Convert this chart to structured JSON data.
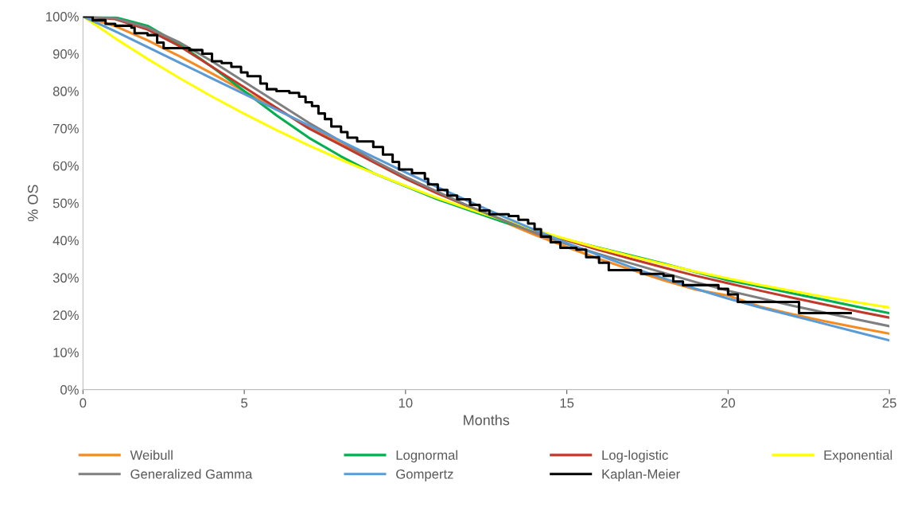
{
  "chart_data": {
    "type": "line",
    "xlabel": "Months",
    "ylabel": "% OS",
    "xlim": [
      0,
      25
    ],
    "xticks": [
      0,
      5,
      10,
      15,
      20,
      25
    ],
    "ylim": [
      0,
      100
    ],
    "yticks": [
      {
        "value": 0,
        "label": "0%"
      },
      {
        "value": 10,
        "label": "10%"
      },
      {
        "value": 20,
        "label": "20%"
      },
      {
        "value": 30,
        "label": "30%"
      },
      {
        "value": 40,
        "label": "40%"
      },
      {
        "value": 50,
        "label": "50%"
      },
      {
        "value": 60,
        "label": "60%"
      },
      {
        "value": 70,
        "label": "70%"
      },
      {
        "value": 80,
        "label": "80%"
      },
      {
        "value": 90,
        "label": "90%"
      },
      {
        "value": 100,
        "label": "100%"
      }
    ],
    "grid": false,
    "legend": "bottom",
    "marker": "none",
    "line_style": "solid",
    "x": [
      0,
      1,
      2,
      3,
      4,
      5,
      6,
      7,
      8,
      9,
      10,
      11,
      12,
      13,
      14,
      15,
      16,
      17,
      18,
      19,
      20,
      21,
      22,
      23,
      24,
      25
    ],
    "series": [
      {
        "name": "Weibull",
        "color": "#f58c23",
        "values": [
          100,
          97.4,
          93.6,
          89.3,
          84.7,
          79.9,
          75.2,
          70.5,
          65.8,
          61.3,
          57.0,
          52.8,
          48.8,
          45.1,
          41.5,
          38.2,
          35.0,
          32.1,
          29.3,
          26.8,
          25.2,
          22.2,
          20.2,
          18.3,
          16.6,
          15.0
        ]
      },
      {
        "name": "Lognormal",
        "color": "#00b050",
        "values": [
          100,
          99.8,
          97.5,
          92.5,
          86.5,
          80,
          73.5,
          67.5,
          62.5,
          58,
          54.5,
          51,
          48,
          45,
          42.5,
          40.2,
          38,
          35.9,
          33.8,
          31.5,
          29.3,
          27.6,
          25.8,
          24,
          22.2,
          20.5
        ]
      },
      {
        "name": "Log-logistic",
        "color": "#c0392b",
        "values": [
          100,
          99.3,
          96.5,
          92,
          86.5,
          81,
          75.5,
          70,
          65.5,
          61,
          56.5,
          52.5,
          49,
          45.5,
          42.5,
          40,
          37.4,
          35,
          32.7,
          30.5,
          28.5,
          26.5,
          24.6,
          22.8,
          21,
          19.3
        ]
      },
      {
        "name": "Exponential",
        "color": "#ffff00",
        "values": [
          100,
          94.1,
          88.6,
          83.4,
          78.5,
          73.9,
          69.5,
          65.4,
          61.6,
          58.0,
          54.6,
          51.3,
          48.3,
          45.5,
          42.8,
          40.3,
          37.9,
          35.7,
          33.6,
          31.6,
          29.8,
          28.0,
          26.4,
          24.8,
          23.4,
          22.0
        ]
      },
      {
        "name": "Generalized Gamma",
        "color": "#7f7f7f",
        "values": [
          100,
          99.5,
          97,
          93,
          88,
          82.5,
          77,
          71.5,
          66.5,
          61.5,
          57,
          53,
          49,
          45.5,
          42,
          39,
          36.3,
          33.8,
          31.3,
          28.8,
          26.5,
          24.5,
          22.5,
          20.6,
          18.8,
          17
        ]
      },
      {
        "name": "Gompertz",
        "color": "#5b9bd5",
        "values": [
          100,
          96,
          91.8,
          87.6,
          83.4,
          79.2,
          75,
          70.8,
          66.6,
          62.4,
          58.2,
          54.2,
          50.3,
          46.5,
          42.8,
          39.3,
          36,
          32.8,
          29.8,
          27,
          24.4,
          22,
          19.8,
          17.6,
          15.4,
          13.2
        ]
      },
      {
        "name": "Kaplan-Meier",
        "color": "#000000",
        "type": "step",
        "x": [
          0,
          0.3,
          0.7,
          1.0,
          1.5,
          1.6,
          2.0,
          2.3,
          2.5,
          3.0,
          3.3,
          3.7,
          4.0,
          4.3,
          4.6,
          4.9,
          5.1,
          5.5,
          5.7,
          6.0,
          6.4,
          6.7,
          6.9,
          7.1,
          7.3,
          7.5,
          7.7,
          8.0,
          8.2,
          8.5,
          9.0,
          9.3,
          9.6,
          9.8,
          10.2,
          10.6,
          10.7,
          11.0,
          11.3,
          11.6,
          12.0,
          12.3,
          12.6,
          13.2,
          13.5,
          13.8,
          14.0,
          14.2,
          14.5,
          14.8,
          15.3,
          15.6,
          16.0,
          16.3,
          17.0,
          17.3,
          18.0,
          18.3,
          18.6,
          19.7,
          20.0,
          20.3,
          22.2,
          23.8
        ],
        "values": [
          100,
          99,
          98,
          97.5,
          97,
          95.5,
          95,
          93,
          91.5,
          91.5,
          91,
          90,
          88,
          87.5,
          86.5,
          85,
          84,
          82,
          80.5,
          80,
          79.5,
          78.5,
          77,
          76,
          74,
          72.5,
          70.5,
          69,
          67.5,
          66.5,
          65,
          63,
          61,
          59,
          58,
          56.5,
          55,
          53.5,
          52,
          51,
          49.5,
          48,
          47,
          46.5,
          45.5,
          44.5,
          43,
          41,
          39.5,
          38,
          37.5,
          35.5,
          34,
          32,
          32,
          31,
          30.5,
          29,
          28,
          27,
          25.5,
          23.5,
          20.5,
          20.5
        ]
      }
    ]
  }
}
